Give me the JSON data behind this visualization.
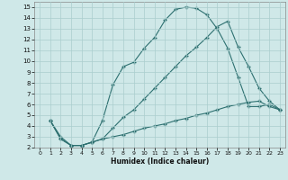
{
  "xlabel": "Humidex (Indice chaleur)",
  "bg_color": "#cfe8e8",
  "grid_color": "#aacece",
  "line_color": "#2d7070",
  "xlim": [
    -0.5,
    23.5
  ],
  "ylim": [
    2,
    15.5
  ],
  "xticks": [
    0,
    1,
    2,
    3,
    4,
    5,
    6,
    7,
    8,
    9,
    10,
    11,
    12,
    13,
    14,
    15,
    16,
    17,
    18,
    19,
    20,
    21,
    22,
    23
  ],
  "yticks": [
    2,
    3,
    4,
    5,
    6,
    7,
    8,
    9,
    10,
    11,
    12,
    13,
    14,
    15
  ],
  "line1_x": [
    1,
    2,
    3,
    4,
    5,
    6,
    7,
    8,
    9,
    10,
    11,
    12,
    13,
    14,
    15,
    16,
    17,
    18,
    19,
    20,
    21,
    22,
    23
  ],
  "line1_y": [
    4.5,
    3.0,
    2.2,
    2.2,
    2.5,
    4.5,
    7.8,
    9.5,
    9.9,
    11.2,
    12.2,
    13.8,
    14.8,
    15.0,
    14.9,
    14.3,
    13.0,
    11.2,
    8.5,
    5.8,
    5.8,
    6.0,
    5.5
  ],
  "line2_x": [
    1,
    2,
    3,
    4,
    5,
    6,
    7,
    8,
    9,
    10,
    11,
    12,
    13,
    14,
    15,
    16,
    17,
    18,
    19,
    20,
    21,
    22,
    23
  ],
  "line2_y": [
    4.5,
    2.8,
    2.2,
    2.2,
    2.5,
    2.8,
    3.8,
    4.8,
    5.5,
    6.5,
    7.5,
    8.5,
    9.5,
    10.5,
    11.3,
    12.2,
    13.2,
    13.7,
    11.3,
    9.5,
    7.5,
    6.3,
    5.5
  ],
  "line3_x": [
    1,
    2,
    3,
    4,
    5,
    6,
    7,
    8,
    9,
    10,
    11,
    12,
    13,
    14,
    15,
    16,
    17,
    18,
    19,
    20,
    21,
    22,
    23
  ],
  "line3_y": [
    4.5,
    2.8,
    2.2,
    2.2,
    2.5,
    2.8,
    3.0,
    3.2,
    3.5,
    3.8,
    4.0,
    4.2,
    4.5,
    4.7,
    5.0,
    5.2,
    5.5,
    5.8,
    6.0,
    6.2,
    6.3,
    5.8,
    5.5
  ]
}
